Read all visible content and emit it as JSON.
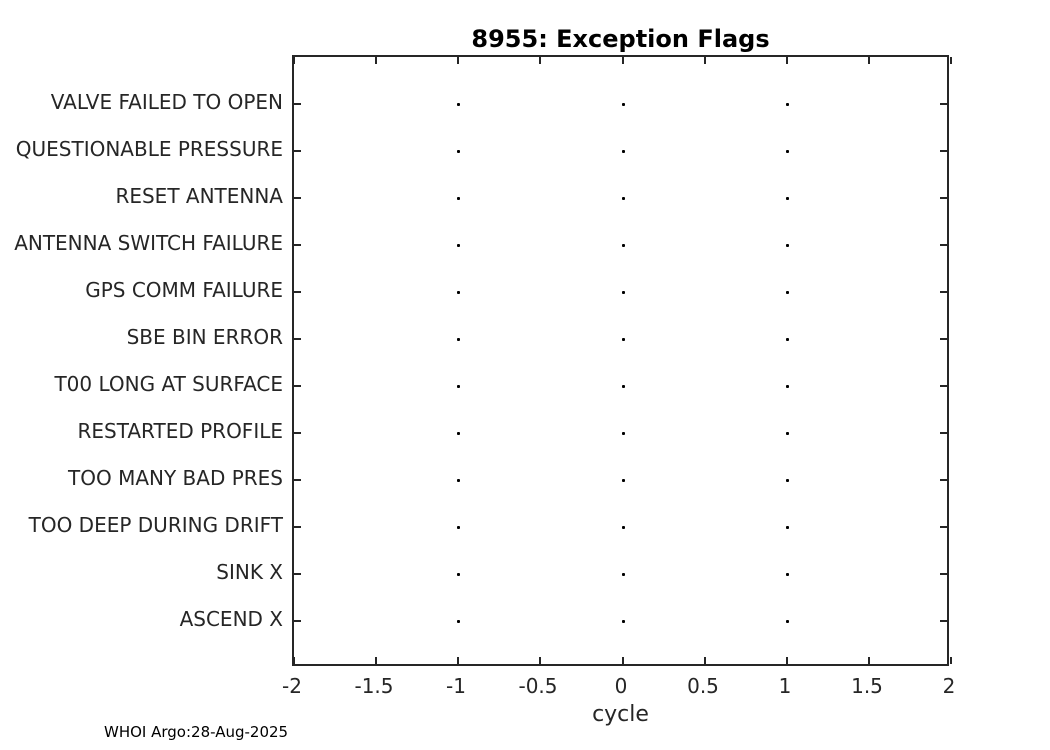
{
  "chart_data": {
    "type": "scatter",
    "title": "8955: Exception Flags",
    "xlabel": "cycle",
    "ylabel": "",
    "xlim": [
      -2,
      2
    ],
    "ylim": [
      0,
      13
    ],
    "xticks": [
      -2,
      -1.5,
      -1,
      -0.5,
      0,
      0.5,
      1,
      1.5,
      2
    ],
    "xtick_labels": [
      "-2",
      "-1.5",
      "-1",
      "-0.5",
      "0",
      "0.5",
      "1",
      "1.5",
      "2"
    ],
    "categories": [
      "VALVE FAILED TO OPEN",
      "QUESTIONABLE PRESSURE",
      "RESET ANTENNA",
      "ANTENNA SWITCH FAILURE",
      "GPS COMM FAILURE",
      "SBE BIN ERROR",
      "T00 LONG AT SURFACE",
      "RESTARTED PROFILE",
      "TOO MANY BAD PRES",
      "TOO DEEP DURING DRIFT",
      "SINK X",
      "ASCEND X"
    ],
    "category_y_values": [
      12,
      11,
      10,
      9,
      8,
      7,
      6,
      5,
      4,
      3,
      2,
      1
    ],
    "series": [
      {
        "name": "exception-flag-markers",
        "marker": "point",
        "color": "#000000",
        "points_x_per_category": [
          -1,
          0,
          1
        ]
      }
    ],
    "grid": false,
    "legend": false,
    "box": true,
    "tick_direction": "in"
  },
  "footer": {
    "credit": "WHOI Argo:28-Aug-2025"
  },
  "colors": {
    "background": "#ffffff",
    "axis": "#262626",
    "title": "#000000",
    "marker": "#000000"
  }
}
